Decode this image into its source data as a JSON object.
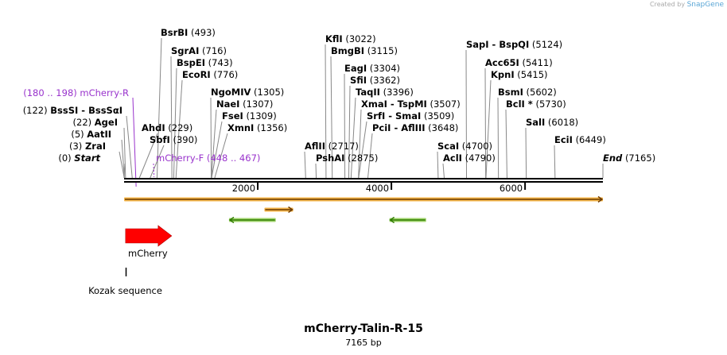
{
  "branding": {
    "created_by": "Created by",
    "product": "SnapGene"
  },
  "map": {
    "name": "mCherry-Talin-R-15",
    "length_label": "7165 bp",
    "total_bp": 7165
  },
  "ticks": [
    {
      "label": "2000",
      "bp": 2000
    },
    {
      "label": "4000",
      "bp": 4000
    },
    {
      "label": "6000",
      "bp": 6000
    }
  ],
  "sites": [
    {
      "pos_text": "(0)",
      "name": "Start",
      "italic": true,
      "bp": 0
    },
    {
      "pos_text": "(3)",
      "name": "ZraI",
      "bp": 3
    },
    {
      "pos_text": "(5)",
      "name": "AatII",
      "bp": 5
    },
    {
      "pos_text": "(22)",
      "name": "AgeI",
      "bp": 22
    },
    {
      "pos_text": "(122)",
      "name": "BssSI  -  BssSαI",
      "bp": 122
    },
    {
      "name": "AhdI",
      "pos_text": "(229)",
      "bp": 229
    },
    {
      "name": "SbfI",
      "pos_text": "(390)",
      "bp": 390
    },
    {
      "name": "BsrBI",
      "pos_text": "(493)",
      "bp": 493
    },
    {
      "name": "SgrAI",
      "pos_text": "(716)",
      "bp": 716
    },
    {
      "name": "BspEI",
      "pos_text": "(743)",
      "bp": 743
    },
    {
      "name": "EcoRI",
      "pos_text": "(776)",
      "bp": 776
    },
    {
      "name": "NgoMIV",
      "pos_text": "(1305)",
      "bp": 1305
    },
    {
      "name": "NaeI",
      "pos_text": "(1307)",
      "bp": 1307
    },
    {
      "name": "FseI",
      "pos_text": "(1309)",
      "bp": 1309
    },
    {
      "name": "XmnI",
      "pos_text": "(1356)",
      "bp": 1356
    },
    {
      "name": "AflII",
      "pos_text": "(2717)",
      "bp": 2717
    },
    {
      "name": "PshAI",
      "pos_text": "(2875)",
      "bp": 2875
    },
    {
      "name": "KflI",
      "pos_text": "(3022)",
      "bp": 3022
    },
    {
      "name": "BmgBI",
      "pos_text": "(3115)",
      "bp": 3115
    },
    {
      "name": "EagI",
      "pos_text": "(3304)",
      "bp": 3304
    },
    {
      "name": "SfiI",
      "pos_text": "(3362)",
      "bp": 3362
    },
    {
      "name": "TaqII",
      "pos_text": "(3396)",
      "bp": 3396
    },
    {
      "name": "XmaI  -  TspMI",
      "pos_text": "(3507)",
      "bp": 3507
    },
    {
      "name": "SrfI  -  SmaI",
      "pos_text": "(3509)",
      "bp": 3509
    },
    {
      "name": "PciI  -  AflIII",
      "pos_text": "(3648)",
      "bp": 3648
    },
    {
      "name": "ScaI",
      "pos_text": "(4700)",
      "bp": 4700
    },
    {
      "name": "AclI",
      "pos_text": "(4790)",
      "bp": 4790
    },
    {
      "name": "SapI  -  BspQI",
      "pos_text": "(5124)",
      "bp": 5124
    },
    {
      "name": "Acc65I",
      "pos_text": "(5411)",
      "bp": 5411
    },
    {
      "name": "KpnI",
      "pos_text": "(5415)",
      "bp": 5415
    },
    {
      "name": "BsmI",
      "pos_text": "(5602)",
      "bp": 5602
    },
    {
      "name": "BclI *",
      "pos_text": "(5730)",
      "bp": 5730
    },
    {
      "name": "SalI",
      "pos_text": "(6018)",
      "bp": 6018
    },
    {
      "name": "EciI",
      "pos_text": "(6449)",
      "bp": 6449
    },
    {
      "name": "End",
      "italic": true,
      "pos_text": "(7165)",
      "bp": 7165
    }
  ],
  "primers": [
    {
      "name": "mCherry-R",
      "pos_text": "(180 .. 198)",
      "start_bp": 180,
      "end_bp": 198
    },
    {
      "name": "mCherry-F",
      "pos_text": "(448 .. 467)",
      "start_bp": 448,
      "end_bp": 467
    }
  ],
  "features": [
    {
      "name": "mCherry",
      "type": "cds",
      "color": "#ff0000",
      "start_bp": 22,
      "end_bp": 733
    },
    {
      "name": "Kozak sequence",
      "type": "misc",
      "color": "#000000",
      "start_bp": 12,
      "end_bp": 22
    }
  ],
  "orfs": [
    {
      "start_bp": 0,
      "end_bp": 7165,
      "direction": "forward",
      "color": "#f5b649"
    },
    {
      "start_bp": 2100,
      "end_bp": 2530,
      "direction": "forward",
      "color": "#f5b649"
    },
    {
      "start_bp": 1570,
      "end_bp": 2270,
      "direction": "reverse",
      "color": "#9fd36b"
    },
    {
      "start_bp": 3970,
      "end_bp": 4520,
      "direction": "reverse",
      "color": "#9fd36b"
    }
  ]
}
